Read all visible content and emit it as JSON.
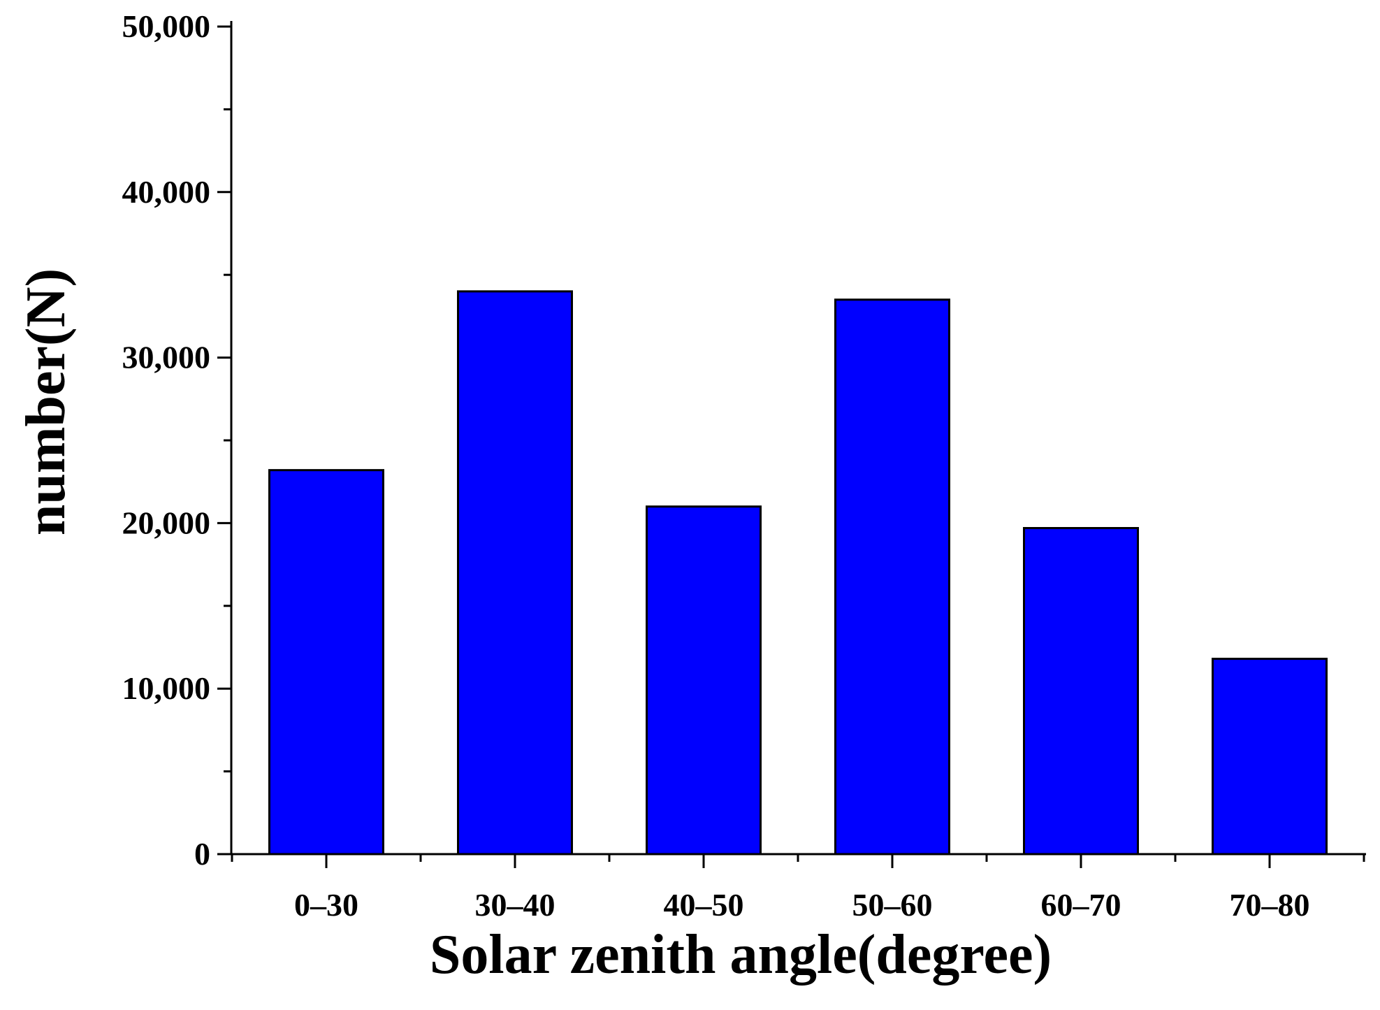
{
  "chart_data": {
    "type": "bar",
    "title": "",
    "xlabel": "Solar zenith angle(degree)",
    "ylabel": "number(N)",
    "categories": [
      "0–30",
      "30–40",
      "40–50",
      "50–60",
      "60–70",
      "70–80"
    ],
    "values": [
      23200,
      34000,
      21000,
      33500,
      19700,
      11800
    ],
    "ylim": [
      0,
      50000
    ],
    "y_ticks": [
      0,
      10000,
      20000,
      30000,
      40000,
      50000
    ],
    "y_tick_labels": [
      "0",
      "10,000",
      "20,000",
      "30,000",
      "40,000",
      "50,000"
    ],
    "grid": false,
    "legend": "none",
    "bar_color": "#0000ff",
    "bar_edge_color": "#000000"
  }
}
